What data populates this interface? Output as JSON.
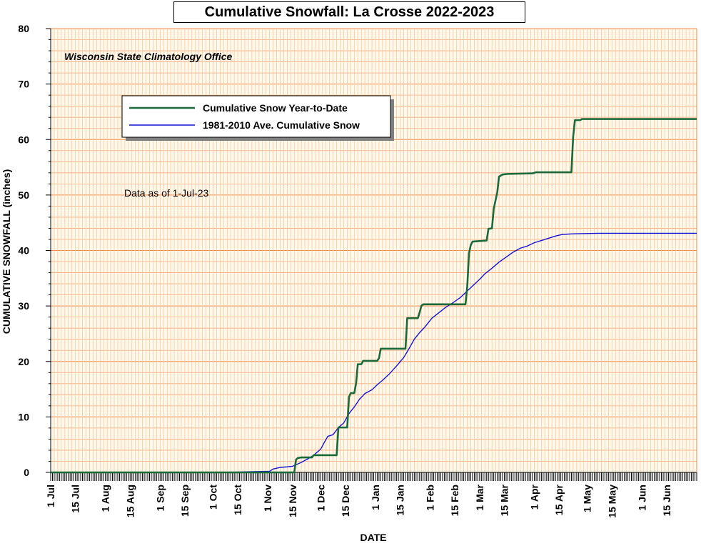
{
  "chart_data": {
    "type": "line",
    "title": "Cumulative Snowfall: La Crosse 2022-2023",
    "subtitle": "Wisconsin State Climatology Office",
    "note": "Data as of 1-Jul-23",
    "xlabel": "DATE",
    "ylabel": "CUMULATIVE SNOWFALL (inches)",
    "ylim": [
      0,
      80
    ],
    "xlim_days": [
      0,
      366
    ],
    "grid": true,
    "legend_position": "top-left",
    "y_ticks": [
      "0",
      "10",
      "20",
      "30",
      "40",
      "50",
      "60",
      "70",
      "80"
    ],
    "x_ticks": [
      {
        "label": "1 Jul",
        "day": 0
      },
      {
        "label": "15 Jul",
        "day": 14
      },
      {
        "label": "1 Aug",
        "day": 31
      },
      {
        "label": "15 Aug",
        "day": 45
      },
      {
        "label": "1 Sep",
        "day": 62
      },
      {
        "label": "15 Sep",
        "day": 76
      },
      {
        "label": "1 Oct",
        "day": 92
      },
      {
        "label": "15 Oct",
        "day": 106
      },
      {
        "label": "1 Nov",
        "day": 123
      },
      {
        "label": "15 Nov",
        "day": 137
      },
      {
        "label": "1 Dec",
        "day": 153
      },
      {
        "label": "15 Dec",
        "day": 167
      },
      {
        "label": "1 Jan",
        "day": 184
      },
      {
        "label": "15 Jan",
        "day": 198
      },
      {
        "label": "1 Feb",
        "day": 215
      },
      {
        "label": "15 Feb",
        "day": 229
      },
      {
        "label": "1 Mar",
        "day": 243
      },
      {
        "label": "15 Mar",
        "day": 257
      },
      {
        "label": "1 Apr",
        "day": 274
      },
      {
        "label": "15 Apr",
        "day": 288
      },
      {
        "label": "1 May",
        "day": 304
      },
      {
        "label": "15 May",
        "day": 318
      },
      {
        "label": "1 Jun",
        "day": 335
      },
      {
        "label": "15 Jun",
        "day": 349
      }
    ],
    "series": [
      {
        "name": "Cumulative Snow Year-to-Date",
        "color": "#1b6b3a",
        "step": true,
        "points": [
          [
            0,
            0
          ],
          [
            138,
            0
          ],
          [
            139,
            2.3
          ],
          [
            140,
            2.6
          ],
          [
            142,
            2.7
          ],
          [
            148,
            2.7
          ],
          [
            149,
            3.1
          ],
          [
            162,
            3.1
          ],
          [
            163,
            8.1
          ],
          [
            168,
            8.1
          ],
          [
            169,
            13.6
          ],
          [
            170,
            14.3
          ],
          [
            172,
            14.3
          ],
          [
            173,
            16.0
          ],
          [
            174,
            19.5
          ],
          [
            176,
            19.5
          ],
          [
            177,
            20.1
          ],
          [
            185,
            20.1
          ],
          [
            186,
            20.6
          ],
          [
            187,
            22.3
          ],
          [
            201,
            22.3
          ],
          [
            202,
            27.8
          ],
          [
            208,
            27.8
          ],
          [
            209,
            28.8
          ],
          [
            210,
            30.0
          ],
          [
            211,
            30.3
          ],
          [
            235,
            30.3
          ],
          [
            236,
            33.5
          ],
          [
            237,
            39.5
          ],
          [
            238,
            41.0
          ],
          [
            239,
            41.6
          ],
          [
            243,
            41.7
          ],
          [
            247,
            41.8
          ],
          [
            248,
            43.9
          ],
          [
            250,
            44.0
          ],
          [
            251,
            47.5
          ],
          [
            253,
            50.5
          ],
          [
            254,
            53.3
          ],
          [
            256,
            53.7
          ],
          [
            259,
            53.8
          ],
          [
            273,
            53.9
          ],
          [
            275,
            54.1
          ],
          [
            295,
            54.1
          ],
          [
            296,
            60.5
          ],
          [
            297,
            63.5
          ],
          [
            300,
            63.5
          ],
          [
            301,
            63.7
          ],
          [
            366,
            63.7
          ]
        ]
      },
      {
        "name": "1981-2010 Ave. Cumulative Snow",
        "color": "#1414d2",
        "step": false,
        "points": [
          [
            0,
            0
          ],
          [
            100,
            0
          ],
          [
            111,
            0.1
          ],
          [
            124,
            0.2
          ],
          [
            126,
            0.6
          ],
          [
            130,
            0.9
          ],
          [
            134,
            1.0
          ],
          [
            137,
            1.1
          ],
          [
            142,
            1.8
          ],
          [
            146,
            2.5
          ],
          [
            149,
            3.1
          ],
          [
            153,
            4.2
          ],
          [
            155,
            5.4
          ],
          [
            157,
            6.5
          ],
          [
            160,
            6.8
          ],
          [
            163,
            8.1
          ],
          [
            166,
            8.9
          ],
          [
            169,
            10.6
          ],
          [
            172,
            11.8
          ],
          [
            175,
            13.2
          ],
          [
            178,
            14.2
          ],
          [
            182,
            14.9
          ],
          [
            185,
            15.8
          ],
          [
            188,
            16.6
          ],
          [
            192,
            17.8
          ],
          [
            196,
            19.2
          ],
          [
            200,
            20.7
          ],
          [
            203,
            22.3
          ],
          [
            206,
            24.0
          ],
          [
            209,
            25.2
          ],
          [
            212,
            26.2
          ],
          [
            216,
            27.8
          ],
          [
            220,
            28.8
          ],
          [
            224,
            29.8
          ],
          [
            228,
            30.6
          ],
          [
            232,
            31.5
          ],
          [
            236,
            32.7
          ],
          [
            240,
            33.9
          ],
          [
            243,
            34.8
          ],
          [
            246,
            35.8
          ],
          [
            250,
            36.8
          ],
          [
            254,
            37.9
          ],
          [
            258,
            38.8
          ],
          [
            262,
            39.7
          ],
          [
            266,
            40.4
          ],
          [
            270,
            40.8
          ],
          [
            274,
            41.4
          ],
          [
            278,
            41.8
          ],
          [
            282,
            42.2
          ],
          [
            286,
            42.6
          ],
          [
            290,
            42.9
          ],
          [
            296,
            43.0
          ],
          [
            310,
            43.1
          ],
          [
            366,
            43.1
          ]
        ]
      }
    ]
  }
}
